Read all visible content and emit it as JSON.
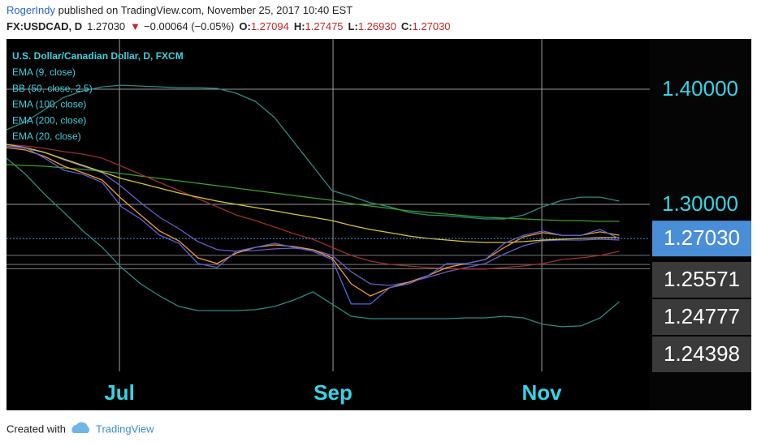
{
  "header": {
    "user": "RogerIndy",
    "published": " published on TradingView.com, November 25, 2017 10:40 EST",
    "symbol": "FX:USDCAD, D",
    "last": "1.27030",
    "direction": "▼",
    "change": "−0.00064 (−0.05%)",
    "ohlc": [
      {
        "label": "O:",
        "value": "1.27094"
      },
      {
        "label": "H:",
        "value": "1.27475"
      },
      {
        "label": "L:",
        "value": "1.26930"
      },
      {
        "label": "C:",
        "value": "1.27030"
      }
    ]
  },
  "footer": {
    "created": "Created with",
    "brand": "TradingView"
  },
  "chart_data": {
    "type": "line",
    "x": [
      0,
      4,
      8,
      12,
      16,
      20,
      24,
      28,
      32,
      36,
      40,
      44,
      48,
      52,
      56,
      60,
      64,
      68,
      72,
      76,
      80,
      84,
      88,
      92,
      96,
      100,
      104,
      108,
      112,
      116,
      120,
      124,
      128
    ],
    "xlim": [
      0,
      133
    ],
    "xticks": [
      {
        "value": 23.6,
        "label": "Jul"
      },
      {
        "value": 68.2,
        "label": "Sep"
      },
      {
        "value": 111.8,
        "label": "Nov"
      }
    ],
    "ylim": [
      1.1549,
      1.4437
    ],
    "yticks": [
      {
        "value": 1.4,
        "label": "1.40000"
      },
      {
        "value": 1.3,
        "label": "1.30000"
      }
    ],
    "grid": true,
    "series": [
      {
        "name": "U.S. Dollar/Canadian Dollar, D, FXCM",
        "color": "#5a63dc",
        "values": [
          1.3507,
          1.3493,
          1.3401,
          1.3296,
          1.3261,
          1.319,
          1.2979,
          1.2873,
          1.2732,
          1.2662,
          1.2486,
          1.2451,
          1.2592,
          1.2627,
          1.2662,
          1.2627,
          1.2592,
          1.2521,
          1.2134,
          1.2134,
          1.2275,
          1.231,
          1.238,
          1.2486,
          1.2486,
          1.2521,
          1.2662,
          1.2732,
          1.2768,
          1.2732,
          1.2732,
          1.2782,
          1.2703
        ]
      },
      {
        "name": "EMA (9, close)",
        "color": "#f39c2a",
        "values": [
          1.3493,
          1.3472,
          1.3415,
          1.3331,
          1.3275,
          1.3211,
          1.3049,
          1.2908,
          1.2768,
          1.2683,
          1.2535,
          1.2486,
          1.2577,
          1.2627,
          1.2648,
          1.2634,
          1.2606,
          1.2535,
          1.231,
          1.2204,
          1.2275,
          1.2324,
          1.238,
          1.2451,
          1.2486,
          1.2521,
          1.2627,
          1.2718,
          1.2754,
          1.2732,
          1.2732,
          1.2761,
          1.2732
        ]
      },
      {
        "name": "BB (50, close, 2.5)",
        "color": "#d8c634",
        "band_color": "#2a8c82",
        "values": [
          1.3521,
          1.3493,
          1.3451,
          1.3394,
          1.3338,
          1.3282,
          1.3225,
          1.3183,
          1.3141,
          1.3099,
          1.3063,
          1.3028,
          1.3,
          1.2972,
          1.2944,
          1.2915,
          1.2887,
          1.2859,
          1.2817,
          1.2782,
          1.2754,
          1.2725,
          1.2704,
          1.269,
          1.2676,
          1.2669,
          1.2669,
          1.2676,
          1.269,
          1.2697,
          1.2704,
          1.2711,
          1.2711
        ],
        "upper": [
          1.3648,
          1.3718,
          1.3824,
          1.393,
          1.3986,
          1.4021,
          1.4035,
          1.4028,
          1.4021,
          1.4014,
          1.4014,
          1.4007,
          1.3965,
          1.3894,
          1.3754,
          1.3542,
          1.3331,
          1.312,
          1.307,
          1.3014,
          1.2979,
          1.293,
          1.2908,
          1.2901,
          1.2887,
          1.2873,
          1.2873,
          1.2908,
          1.2979,
          1.3035,
          1.3063,
          1.3063,
          1.3028
        ],
        "lower": [
          1.3401,
          1.3261,
          1.3085,
          1.293,
          1.2768,
          1.2627,
          1.2451,
          1.231,
          1.2204,
          1.2113,
          1.2077,
          1.2077,
          1.2077,
          1.2085,
          1.2113,
          1.2169,
          1.2239,
          1.2134,
          1.2028,
          1.2007,
          1.2007,
          1.2007,
          1.2007,
          1.2007,
          1.2014,
          1.2014,
          1.2028,
          1.2014,
          1.1958,
          1.1937,
          1.1944,
          1.2014,
          1.2155
        ]
      },
      {
        "name": "EMA (100, close)",
        "color": "#9e2e2e",
        "values": [
          1.3521,
          1.3507,
          1.3486,
          1.3458,
          1.3437,
          1.3401,
          1.3331,
          1.3261,
          1.319,
          1.312,
          1.3049,
          1.2979,
          1.2908,
          1.2859,
          1.2803,
          1.2746,
          1.2697,
          1.2627,
          1.2556,
          1.2507,
          1.2479,
          1.2465,
          1.2451,
          1.2444,
          1.2437,
          1.2437,
          1.2451,
          1.2465,
          1.2486,
          1.2521,
          1.2535,
          1.2556,
          1.2592
        ]
      },
      {
        "name": "EMA (200, close)",
        "color": "#3ca02a",
        "values": [
          1.3345,
          1.3338,
          1.3331,
          1.3317,
          1.3303,
          1.3289,
          1.3268,
          1.3246,
          1.3225,
          1.3204,
          1.3183,
          1.3162,
          1.3141,
          1.312,
          1.3099,
          1.3077,
          1.3056,
          1.3035,
          1.3007,
          1.2986,
          1.2965,
          1.2944,
          1.293,
          1.2915,
          1.2901,
          1.2887,
          1.288,
          1.2873,
          1.2866,
          1.2859,
          1.2859,
          1.2852,
          1.2852
        ]
      },
      {
        "name": "EMA (20, close)",
        "color": "#6e5cc8",
        "values": [
          1.3507,
          1.3486,
          1.3451,
          1.3387,
          1.3331,
          1.3275,
          1.3155,
          1.3014,
          1.2887,
          1.2789,
          1.2676,
          1.2606,
          1.2592,
          1.2599,
          1.2613,
          1.262,
          1.2606,
          1.2556,
          1.2415,
          1.231,
          1.2296,
          1.2324,
          1.2366,
          1.2415,
          1.2451,
          1.2486,
          1.257,
          1.2641,
          1.2683,
          1.269,
          1.269,
          1.2697,
          1.269
        ]
      }
    ],
    "last_price": {
      "value": 1.2703,
      "label": "1.27030",
      "color": "#4a8ed8"
    },
    "levels": [
      1.25571,
      1.24777,
      1.24398
    ]
  }
}
